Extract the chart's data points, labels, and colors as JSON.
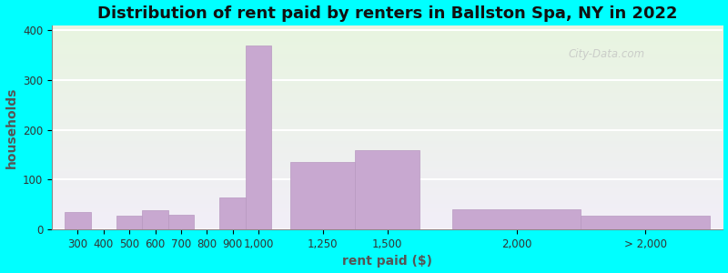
{
  "title": "Distribution of rent paid by renters in Ballston Spa, NY in 2022",
  "xlabel": "rent paid ($)",
  "ylabel": "households",
  "bar_centers": [
    300,
    400,
    500,
    600,
    700,
    800,
    900,
    1000,
    1250,
    1500,
    2000,
    2500
  ],
  "bar_widths": [
    100,
    100,
    100,
    100,
    100,
    100,
    100,
    100,
    250,
    250,
    500,
    500
  ],
  "bar_heights": [
    35,
    0,
    28,
    38,
    30,
    0,
    65,
    370,
    135,
    160,
    40,
    28
  ],
  "bar_labels": [
    "300",
    "400",
    "500",
    "600",
    "700",
    "800",
    "900",
    "1,000",
    "1,250",
    "1,500",
    "2,000",
    "> 2,000"
  ],
  "bar_color": "#c8a8d0",
  "bar_edge_color": "#b898c0",
  "ylim": [
    0,
    410
  ],
  "yticks": [
    0,
    100,
    200,
    300,
    400
  ],
  "xlim": [
    200,
    2800
  ],
  "background_color": "#00ffff",
  "plot_bg_top": "#e8f5e0",
  "plot_bg_bottom": "#f2eef8",
  "grid_color": "#ffffff",
  "title_fontsize": 13,
  "axis_label_fontsize": 10,
  "tick_fontsize": 8.5,
  "watermark_text": "City-Data.com"
}
